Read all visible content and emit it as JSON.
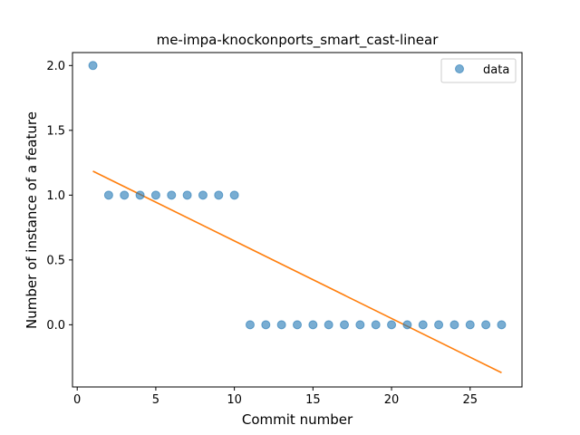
{
  "chart_data": {
    "type": "scatter",
    "title": "me-impa-knockonports_smart_cast-linear",
    "xlabel": "Commit number",
    "ylabel": "Number of instance of a feature",
    "xlim": [
      -0.3,
      28.3
    ],
    "ylim": [
      -0.48,
      2.1
    ],
    "xticks": [
      0,
      5,
      10,
      15,
      20,
      25
    ],
    "xtick_labels": [
      "0",
      "5",
      "10",
      "15",
      "20",
      "25"
    ],
    "yticks": [
      0.0,
      0.5,
      1.0,
      1.5,
      2.0
    ],
    "ytick_labels": [
      "0.0",
      "0.5",
      "1.0",
      "1.5",
      "2.0"
    ],
    "grid": false,
    "legend_position": "top-right",
    "series": [
      {
        "name": "data",
        "kind": "scatter",
        "color": "#1f77b4",
        "x": [
          1,
          2,
          3,
          4,
          5,
          6,
          7,
          8,
          9,
          10,
          11,
          12,
          13,
          14,
          15,
          16,
          17,
          18,
          19,
          20,
          21,
          22,
          23,
          24,
          25,
          26,
          27
        ],
        "y": [
          2,
          1,
          1,
          1,
          1,
          1,
          1,
          1,
          1,
          1,
          0,
          0,
          0,
          0,
          0,
          0,
          0,
          0,
          0,
          0,
          0,
          0,
          0,
          0,
          0,
          0,
          0
        ]
      },
      {
        "kind": "line",
        "color": "#ff7f0e",
        "x": [
          1,
          27
        ],
        "y": [
          1.185,
          -0.37
        ]
      }
    ]
  }
}
